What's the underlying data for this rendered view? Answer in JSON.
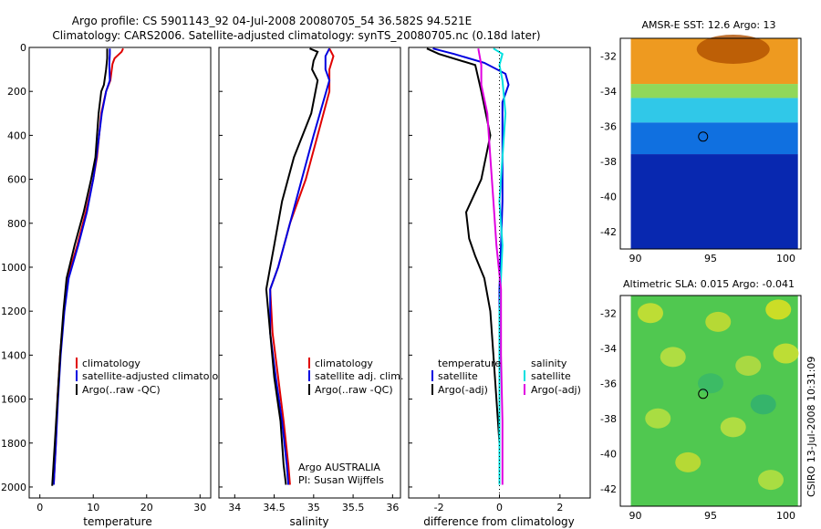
{
  "title": {
    "line1": "Argo profile: CS 5901143_92 04-Jul-2008 20080705_54 36.582S 94.521E",
    "line2": "Climatology: CARS2006. Satellite-adjusted climatology: synTS_20080705.nc (0.18d later)"
  },
  "chart_data": [
    {
      "type": "line",
      "id": "temperature",
      "xlabel": "temperature",
      "xlim": [
        -2,
        32
      ],
      "ylim": [
        2050,
        0
      ],
      "xticks": [
        0,
        10,
        20,
        30
      ],
      "yticks": [
        0,
        200,
        400,
        600,
        800,
        1000,
        1200,
        1400,
        1600,
        1800,
        2000
      ],
      "legend": [
        "climatology",
        "satellite-adjusted climatology",
        "Argo(..raw -QC)"
      ],
      "series": [
        {
          "name": "climatology",
          "color": "#e00000",
          "points": [
            [
              15.6,
              5
            ],
            [
              15.3,
              20
            ],
            [
              14.0,
              50
            ],
            [
              13.6,
              75
            ],
            [
              13.2,
              150
            ],
            [
              12.4,
              200
            ],
            [
              11.5,
              300
            ],
            [
              10.7,
              500
            ],
            [
              10.0,
              600
            ],
            [
              8.6,
              750
            ],
            [
              7.0,
              900
            ],
            [
              5.2,
              1050
            ],
            [
              4.5,
              1200
            ],
            [
              3.8,
              1400
            ],
            [
              3.3,
              1600
            ],
            [
              3.0,
              1800
            ],
            [
              2.6,
              1990
            ]
          ]
        },
        {
          "name": "satellite-adjusted climatology",
          "color": "#0000e0",
          "points": [
            [
              13.1,
              5
            ],
            [
              13.1,
              30
            ],
            [
              13.0,
              75
            ],
            [
              13.1,
              150
            ],
            [
              12.4,
              200
            ],
            [
              11.6,
              300
            ],
            [
              10.6,
              500
            ],
            [
              10.0,
              600
            ],
            [
              8.8,
              750
            ],
            [
              7.2,
              900
            ],
            [
              5.4,
              1050
            ],
            [
              4.6,
              1200
            ],
            [
              3.9,
              1400
            ],
            [
              3.4,
              1600
            ],
            [
              3.0,
              1800
            ],
            [
              2.6,
              1990
            ]
          ]
        },
        {
          "name": "Argo(..raw -QC)",
          "color": "#000000",
          "points": [
            [
              12.6,
              5
            ],
            [
              12.6,
              50
            ],
            [
              12.4,
              100
            ],
            [
              12.0,
              170
            ],
            [
              11.5,
              200
            ],
            [
              11.0,
              300
            ],
            [
              10.4,
              500
            ],
            [
              9.6,
              600
            ],
            [
              8.2,
              750
            ],
            [
              6.5,
              900
            ],
            [
              5.0,
              1050
            ],
            [
              4.4,
              1200
            ],
            [
              3.8,
              1400
            ],
            [
              3.3,
              1600
            ],
            [
              2.8,
              1800
            ],
            [
              2.3,
              1995
            ]
          ]
        }
      ]
    },
    {
      "type": "line",
      "id": "salinity",
      "xlabel": "salinity",
      "xlim": [
        33.8,
        36.1
      ],
      "ylim": [
        2050,
        0
      ],
      "xticks": [
        34,
        34.5,
        35,
        35.5,
        36
      ],
      "xticklabels": [
        "34",
        "34.5",
        "35",
        "35.5",
        "36"
      ],
      "yticks": [
        0,
        200,
        400,
        600,
        800,
        1000,
        1200,
        1400,
        1600,
        1800,
        2000
      ],
      "legend": [
        "climatology",
        "satellite adj. clim.",
        "Argo(..raw -QC)"
      ],
      "annotation": [
        "Argo AUSTRALIA",
        "PI: Susan Wijffels"
      ],
      "series": [
        {
          "name": "climatology",
          "color": "#e00000",
          "points": [
            [
              35.2,
              5
            ],
            [
              35.25,
              40
            ],
            [
              35.2,
              100
            ],
            [
              35.2,
              200
            ],
            [
              35.05,
              400
            ],
            [
              34.9,
              600
            ],
            [
              34.7,
              800
            ],
            [
              34.55,
              1000
            ],
            [
              34.45,
              1100
            ],
            [
              34.48,
              1300
            ],
            [
              34.55,
              1500
            ],
            [
              34.62,
              1700
            ],
            [
              34.68,
              1900
            ],
            [
              34.7,
              1990
            ]
          ]
        },
        {
          "name": "satellite adj. clim.",
          "color": "#0000e0",
          "points": [
            [
              35.2,
              5
            ],
            [
              35.15,
              40
            ],
            [
              35.15,
              100
            ],
            [
              35.2,
              150
            ],
            [
              35.0,
              400
            ],
            [
              34.85,
              600
            ],
            [
              34.7,
              800
            ],
            [
              34.55,
              1000
            ],
            [
              34.45,
              1100
            ],
            [
              34.45,
              1300
            ],
            [
              34.52,
              1500
            ],
            [
              34.6,
              1700
            ],
            [
              34.66,
              1900
            ],
            [
              34.68,
              1990
            ]
          ]
        },
        {
          "name": "Argo(..raw -QC)",
          "color": "#000000",
          "points": [
            [
              34.95,
              5
            ],
            [
              35.05,
              20
            ],
            [
              35.0,
              60
            ],
            [
              34.98,
              100
            ],
            [
              35.05,
              150
            ],
            [
              34.97,
              300
            ],
            [
              34.75,
              500
            ],
            [
              34.6,
              700
            ],
            [
              34.5,
              900
            ],
            [
              34.45,
              1000
            ],
            [
              34.4,
              1100
            ],
            [
              34.45,
              1300
            ],
            [
              34.5,
              1500
            ],
            [
              34.58,
              1700
            ],
            [
              34.62,
              1900
            ],
            [
              34.65,
              1990
            ]
          ]
        }
      ]
    },
    {
      "type": "line",
      "id": "difference",
      "xlabel": "difference from climatology",
      "xlim": [
        -3,
        3
      ],
      "ylim": [
        2050,
        0
      ],
      "xticks": [
        -2,
        0,
        2
      ],
      "yticks": [
        0,
        200,
        400,
        600,
        800,
        1000,
        1200,
        1400,
        1600,
        1800,
        2000
      ],
      "legend_headers": [
        "temperature",
        "salinity"
      ],
      "legend_left": [
        "satellite",
        "Argo(-adj)"
      ],
      "legend_right": [
        "satellite",
        "Argo(-adj)"
      ],
      "series": [
        {
          "name": "temperature satellite",
          "color": "#0000e0",
          "points": [
            [
              -2.2,
              5
            ],
            [
              -1.5,
              30
            ],
            [
              -0.5,
              70
            ],
            [
              0.2,
              120
            ],
            [
              0.3,
              170
            ],
            [
              0.1,
              250
            ],
            [
              0.1,
              500
            ],
            [
              0.1,
              700
            ],
            [
              0.05,
              900
            ],
            [
              0.0,
              1100
            ],
            [
              0.0,
              1400
            ],
            [
              0.0,
              1700
            ],
            [
              0.0,
              1900
            ]
          ]
        },
        {
          "name": "temperature Argo(-adj)",
          "color": "#000000",
          "points": [
            [
              -2.4,
              5
            ],
            [
              -2.0,
              30
            ],
            [
              -0.8,
              80
            ],
            [
              -0.6,
              200
            ],
            [
              -0.3,
              400
            ],
            [
              -0.6,
              600
            ],
            [
              -1.1,
              750
            ],
            [
              -1.0,
              870
            ],
            [
              -0.8,
              950
            ],
            [
              -0.5,
              1050
            ],
            [
              -0.3,
              1200
            ],
            [
              -0.2,
              1400
            ],
            [
              -0.1,
              1600
            ],
            [
              0.0,
              1800
            ],
            [
              0.0,
              1990
            ]
          ]
        },
        {
          "name": "salinity satellite",
          "color": "#00e0e0",
          "points": [
            [
              -0.2,
              5
            ],
            [
              0.1,
              30
            ],
            [
              0.0,
              80
            ],
            [
              0.1,
              150
            ],
            [
              0.2,
              300
            ],
            [
              0.1,
              500
            ],
            [
              0.0,
              700
            ],
            [
              0.1,
              900
            ],
            [
              0.0,
              1200
            ],
            [
              0.0,
              1500
            ],
            [
              0.0,
              1800
            ],
            [
              0.0,
              1990
            ]
          ]
        },
        {
          "name": "salinity Argo(-adj)",
          "color": "#e000e0",
          "points": [
            [
              -0.7,
              5
            ],
            [
              -0.6,
              80
            ],
            [
              -0.6,
              170
            ],
            [
              -0.4,
              300
            ],
            [
              -0.3,
              500
            ],
            [
              -0.2,
              700
            ],
            [
              -0.1,
              900
            ],
            [
              0.05,
              1100
            ],
            [
              0.05,
              1400
            ],
            [
              0.1,
              1700
            ],
            [
              0.1,
              1990
            ]
          ]
        }
      ]
    },
    {
      "type": "heatmap",
      "id": "sst_map",
      "title": "AMSR-E SST: 12.6 Argo: 13",
      "xticks": [
        90,
        95,
        100
      ],
      "yticks": [
        -32,
        -34,
        -36,
        -38,
        -40,
        -42
      ],
      "xlim": [
        89,
        101
      ],
      "ylim": [
        -43,
        -31
      ],
      "argo_location": [
        94.5,
        -36.6
      ],
      "bands": [
        {
          "lat_from": -31,
          "lat_to": -33.6,
          "color": "#ee9a20"
        },
        {
          "lat_from": -33.6,
          "lat_to": -34.4,
          "color": "#90d85a"
        },
        {
          "lat_from": -34.4,
          "lat_to": -35.8,
          "color": "#30c8e8"
        },
        {
          "lat_from": -35.8,
          "lat_to": -37.6,
          "color": "#1070e0"
        },
        {
          "lat_from": -37.6,
          "lat_to": -43,
          "color": "#0828b0"
        }
      ]
    },
    {
      "type": "heatmap",
      "id": "sla_map",
      "title": "Altimetric SLA: 0.015 Argo: -0.041",
      "xticks": [
        90,
        95,
        100
      ],
      "yticks": [
        -32,
        -34,
        -36,
        -38,
        -40,
        -42
      ],
      "xlim": [
        89,
        101
      ],
      "ylim": [
        -43,
        -31
      ],
      "argo_location": [
        94.5,
        -36.6
      ],
      "base_color": "#50c850"
    }
  ],
  "footer": {
    "credit": "CSIRO 13-Jul-2008 10:31:09"
  }
}
